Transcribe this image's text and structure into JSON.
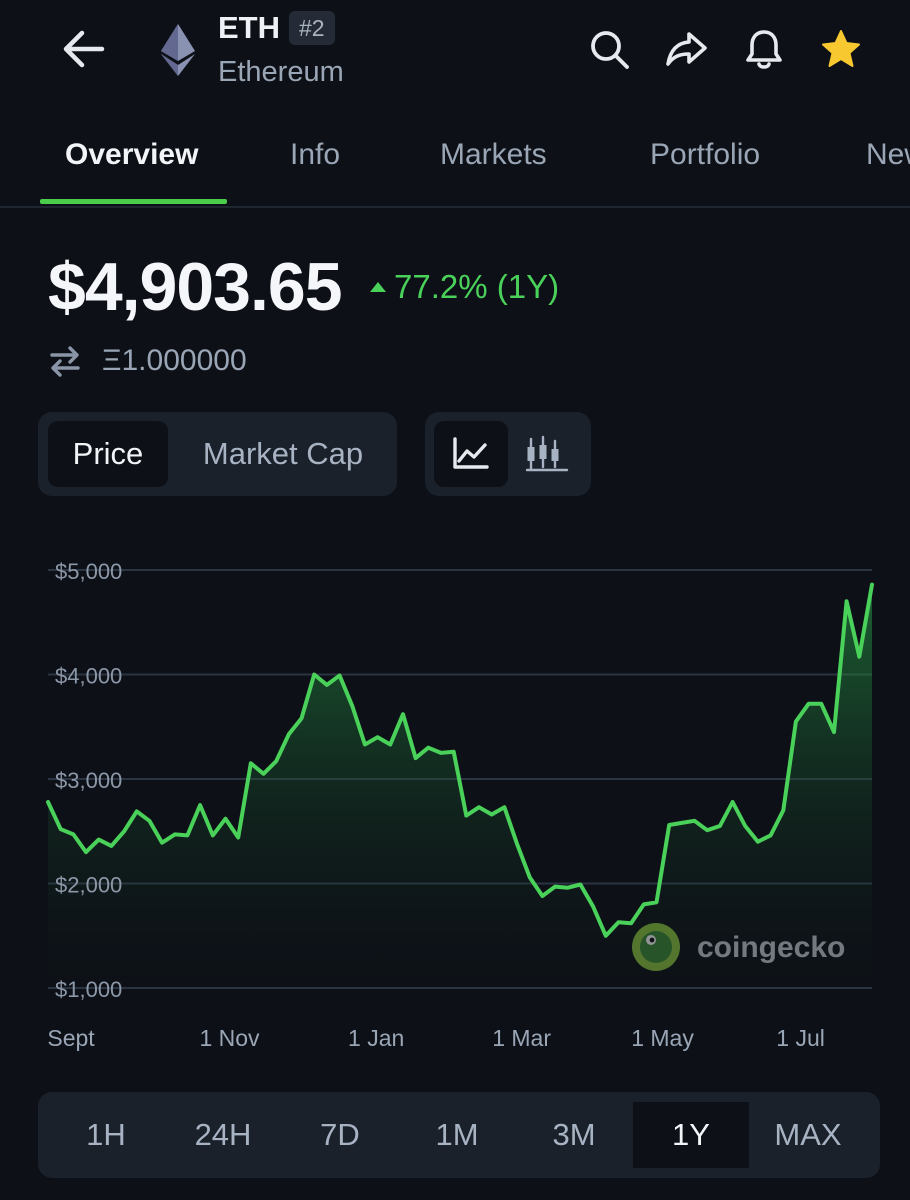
{
  "header": {
    "symbol": "ETH",
    "rank": "#2",
    "name": "Ethereum",
    "icons": [
      "back-arrow-icon",
      "ethereum-logo-icon",
      "search-icon",
      "share-icon",
      "bell-icon",
      "star-icon"
    ],
    "star_color": "#f7c82f"
  },
  "tabs": [
    {
      "label": "Overview",
      "active": true
    },
    {
      "label": "Info"
    },
    {
      "label": "Markets"
    },
    {
      "label": "Portfolio"
    },
    {
      "label": "New"
    }
  ],
  "price": {
    "value": "$4,903.65",
    "change": "77.2% (1Y)",
    "change_color": "#4ad15a",
    "eth_amount": "Ξ1.000000"
  },
  "chart_toggle": {
    "price_label": "Price",
    "mcap_label": "Market Cap",
    "selected": "Price",
    "view_icons": [
      "line-chart-icon",
      "candlestick-icon"
    ]
  },
  "watermark": "coingecko",
  "chart_data": {
    "type": "area",
    "xlabel": "",
    "ylabel": "",
    "ylim": [
      1000,
      5000
    ],
    "yticks": [
      {
        "value": 5000,
        "label": "$5,000"
      },
      {
        "value": 4000,
        "label": "$4,000"
      },
      {
        "value": 3000,
        "label": "$3,000"
      },
      {
        "value": 2000,
        "label": "$2,000"
      },
      {
        "value": 1000,
        "label": "$1,000"
      }
    ],
    "xticks": [
      {
        "label": "Sept",
        "pos": 0.013
      },
      {
        "label": "1 Nov",
        "pos": 0.187
      },
      {
        "label": "1 Jan",
        "pos": 0.357
      },
      {
        "label": "1 Mar",
        "pos": 0.522
      },
      {
        "label": "1 May",
        "pos": 0.681
      },
      {
        "label": "1 Jul",
        "pos": 0.847
      }
    ],
    "line_color": "#4ad15a",
    "grid": true,
    "series": [
      {
        "values": [
          2780,
          2520,
          2470,
          2300,
          2420,
          2360,
          2500,
          2690,
          2600,
          2390,
          2470,
          2460,
          2750,
          2460,
          2620,
          2440,
          3150,
          3050,
          3170,
          3430,
          3580,
          4000,
          3900,
          3990,
          3700,
          3330,
          3400,
          3330,
          3620,
          3200,
          3300,
          3250,
          3260,
          2650,
          2730,
          2660,
          2730,
          2380,
          2060,
          1880,
          1970,
          1960,
          1990,
          1780,
          1500,
          1630,
          1620,
          1800,
          1820,
          2560,
          2580,
          2600,
          2510,
          2550,
          2780,
          2550,
          2400,
          2460,
          2700,
          3550,
          3720,
          3720,
          3450,
          4700,
          4170,
          4860
        ]
      }
    ]
  },
  "ranges": [
    {
      "label": "1H"
    },
    {
      "label": "24H"
    },
    {
      "label": "7D"
    },
    {
      "label": "1M"
    },
    {
      "label": "3M"
    },
    {
      "label": "1Y",
      "active": true
    },
    {
      "label": "MAX"
    }
  ]
}
